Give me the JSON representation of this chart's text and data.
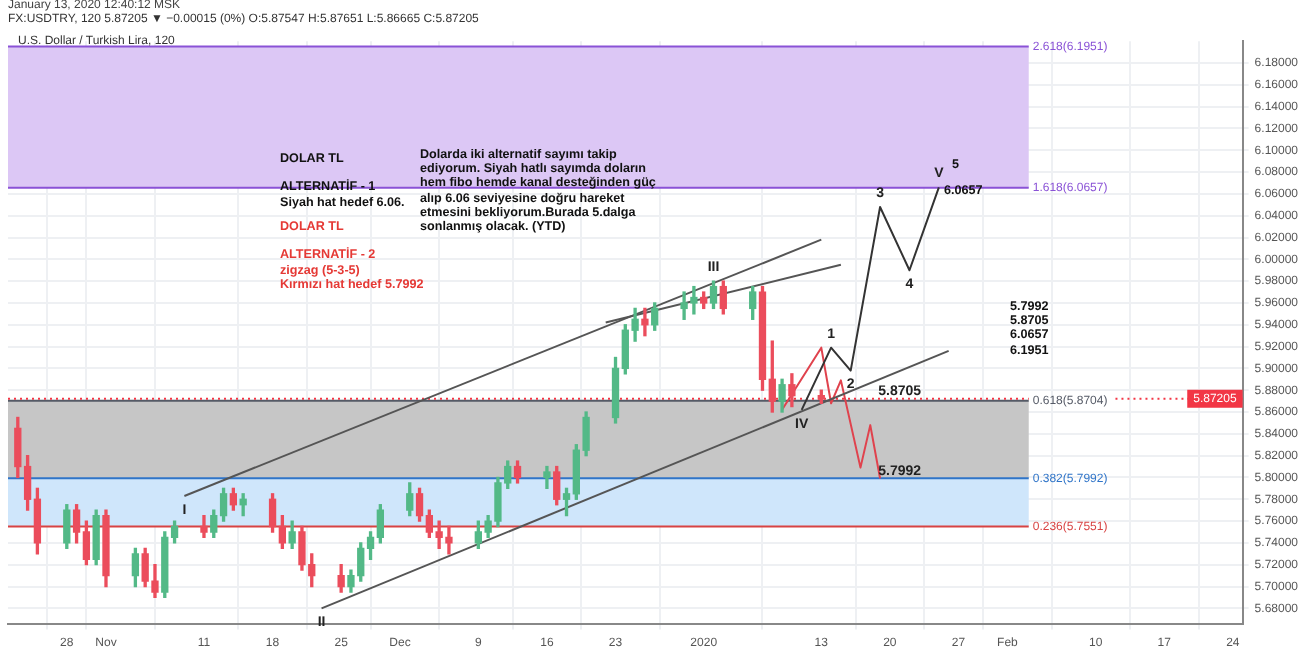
{
  "chart_data": {
    "type": "candlestick",
    "title": "U.S. Dollar / Turkish Lira, 120",
    "subtitle": "FX:USDTRY, 120 5.87205 ▼ −0.00015 (0%) O:5.87547 H:5.87651 L:5.86665 C:5.87205",
    "annotations": [
      "January 13, 2020 12:40:12 MSK",
      "DOLAR TL\n\nALTERNATİF - 1\nSiyah hat hedef 6.06.",
      "DOLAR TL\n\nALTERNATİF - 2\nzigzag (5-3-5)\nKırmızı hat  hedef 5.7992",
      "Dolarda iki alternatif sayımı takip ediyorum. Siyah hatlı sayımda doların hem fibo hemde kanal desteğinden güç alıp 6.06 seviyesine doğru hareket etmesini bekliyorum.Burada 5.dalga sonlanmış olacak. (YTD)",
      "5.7992\n5.8705\n6.0657\n6.1951",
      "5",
      "6.0657",
      {
        "text": "I",
        "x": "2019-11-09",
        "y": 5.783
      },
      {
        "text": "II",
        "x": "2019-11-23",
        "y": 5.68
      },
      {
        "text": "III",
        "x": "2020-01-02",
        "y": 5.98
      },
      {
        "text": "IV",
        "x": "2020-01-11",
        "y": 5.862
      },
      {
        "text": "V",
        "x": "2020-01-25",
        "y": 6.066
      },
      {
        "text": "1",
        "x": "2020-01-14",
        "y": 5.919
      },
      {
        "text": "2",
        "x": "2020-01-16",
        "y": 5.898
      },
      {
        "text": "3",
        "x": "2020-01-19",
        "y": 6.048
      },
      {
        "text": "4",
        "x": "2020-01-22",
        "y": 5.99
      },
      {
        "text": "5.8705",
        "x": "2020-01-21",
        "y": 5.866
      },
      {
        "text": "5.7992",
        "x": "2020-01-21",
        "y": 5.793
      }
    ],
    "x": [
      "2019-10-23",
      "2019-10-24",
      "2019-10-25",
      "2019-10-28",
      "2019-10-29",
      "2019-10-30",
      "2019-10-31",
      "2019-11-01",
      "2019-11-04",
      "2019-11-05",
      "2019-11-06",
      "2019-11-07",
      "2019-11-08",
      "2019-11-11",
      "2019-11-12",
      "2019-11-13",
      "2019-11-14",
      "2019-11-15",
      "2019-11-18",
      "2019-11-19",
      "2019-11-20",
      "2019-11-21",
      "2019-11-22",
      "2019-11-25",
      "2019-11-26",
      "2019-11-27",
      "2019-11-28",
      "2019-11-29",
      "2019-12-02",
      "2019-12-03",
      "2019-12-04",
      "2019-12-05",
      "2019-12-06",
      "2019-12-09",
      "2019-12-10",
      "2019-12-11",
      "2019-12-12",
      "2019-12-13",
      "2019-12-16",
      "2019-12-17",
      "2019-12-18",
      "2019-12-19",
      "2019-12-20",
      "2019-12-23",
      "2019-12-24",
      "2019-12-25",
      "2019-12-26",
      "2019-12-27",
      "2019-12-30",
      "2019-12-31",
      "2020-01-01",
      "2020-01-02",
      "2020-01-03",
      "2020-01-06",
      "2020-01-07",
      "2020-01-08",
      "2020-01-09",
      "2020-01-10",
      "2020-01-13"
    ],
    "ohlc": [
      [
        5.845,
        5.855,
        5.8,
        5.81
      ],
      [
        5.81,
        5.82,
        5.77,
        5.78
      ],
      [
        5.78,
        5.79,
        5.73,
        5.74
      ],
      [
        5.74,
        5.775,
        5.735,
        5.77
      ],
      [
        5.77,
        5.775,
        5.74,
        5.75
      ],
      [
        5.75,
        5.76,
        5.72,
        5.725
      ],
      [
        5.725,
        5.77,
        5.72,
        5.765
      ],
      [
        5.765,
        5.77,
        5.7,
        5.71
      ],
      [
        5.71,
        5.735,
        5.7,
        5.73
      ],
      [
        5.73,
        5.735,
        5.7,
        5.705
      ],
      [
        5.705,
        5.72,
        5.69,
        5.695
      ],
      [
        5.695,
        5.75,
        5.69,
        5.745
      ],
      [
        5.745,
        5.76,
        5.74,
        5.755
      ],
      [
        5.755,
        5.765,
        5.745,
        5.75
      ],
      [
        5.75,
        5.77,
        5.745,
        5.765
      ],
      [
        5.765,
        5.79,
        5.76,
        5.785
      ],
      [
        5.785,
        5.79,
        5.77,
        5.775
      ],
      [
        5.775,
        5.785,
        5.765,
        5.78
      ],
      [
        5.78,
        5.785,
        5.75,
        5.755
      ],
      [
        5.755,
        5.765,
        5.735,
        5.74
      ],
      [
        5.74,
        5.76,
        5.735,
        5.75
      ],
      [
        5.75,
        5.755,
        5.715,
        5.72
      ],
      [
        5.72,
        5.73,
        5.7,
        5.71
      ],
      [
        5.71,
        5.72,
        5.695,
        5.7
      ],
      [
        5.7,
        5.715,
        5.695,
        5.71
      ],
      [
        5.71,
        5.74,
        5.705,
        5.735
      ],
      [
        5.735,
        5.75,
        5.725,
        5.745
      ],
      [
        5.745,
        5.775,
        5.74,
        5.77
      ],
      [
        5.77,
        5.795,
        5.765,
        5.785
      ],
      [
        5.785,
        5.79,
        5.76,
        5.765
      ],
      [
        5.765,
        5.77,
        5.745,
        5.75
      ],
      [
        5.75,
        5.76,
        5.735,
        5.745
      ],
      [
        5.745,
        5.755,
        5.73,
        5.74
      ],
      [
        5.74,
        5.76,
        5.735,
        5.75
      ],
      [
        5.75,
        5.765,
        5.745,
        5.76
      ],
      [
        5.76,
        5.8,
        5.755,
        5.795
      ],
      [
        5.795,
        5.815,
        5.79,
        5.81
      ],
      [
        5.81,
        5.815,
        5.795,
        5.8
      ],
      [
        5.8,
        5.81,
        5.79,
        5.805
      ],
      [
        5.805,
        5.81,
        5.775,
        5.78
      ],
      [
        5.78,
        5.79,
        5.765,
        5.785
      ],
      [
        5.785,
        5.83,
        5.78,
        5.825
      ],
      [
        5.825,
        5.86,
        5.82,
        5.855
      ],
      [
        5.855,
        5.91,
        5.85,
        5.9
      ],
      [
        5.9,
        5.94,
        5.895,
        5.935
      ],
      [
        5.935,
        5.955,
        5.925,
        5.945
      ],
      [
        5.945,
        5.955,
        5.93,
        5.94
      ],
      [
        5.94,
        5.96,
        5.935,
        5.955
      ],
      [
        5.955,
        5.97,
        5.945,
        5.96
      ],
      [
        5.96,
        5.975,
        5.95,
        5.965
      ],
      [
        5.965,
        5.97,
        5.955,
        5.96
      ],
      [
        5.96,
        5.98,
        5.955,
        5.975
      ],
      [
        5.975,
        5.98,
        5.95,
        5.955
      ],
      [
        5.955,
        5.975,
        5.945,
        5.97
      ],
      [
        5.97,
        5.975,
        5.88,
        5.89
      ],
      [
        5.89,
        5.925,
        5.86,
        5.87
      ],
      [
        5.87,
        5.89,
        5.86,
        5.885
      ],
      [
        5.885,
        5.895,
        5.865,
        5.875
      ],
      [
        5.875,
        5.88,
        5.868,
        5.872
      ]
    ],
    "colors": [
      "#eb4d5c",
      "#eb4d5c",
      "#eb4d5c",
      "#53b987",
      "#eb4d5c",
      "#eb4d5c",
      "#53b987",
      "#eb4d5c",
      "#53b987",
      "#eb4d5c",
      "#eb4d5c",
      "#53b987",
      "#53b987",
      "#eb4d5c",
      "#53b987",
      "#53b987",
      "#eb4d5c",
      "#53b987",
      "#eb4d5c",
      "#eb4d5c",
      "#53b987",
      "#eb4d5c",
      "#eb4d5c",
      "#eb4d5c",
      "#53b987",
      "#53b987",
      "#53b987",
      "#53b987",
      "#53b987",
      "#eb4d5c",
      "#eb4d5c",
      "#eb4d5c",
      "#eb4d5c",
      "#53b987",
      "#53b987",
      "#53b987",
      "#53b987",
      "#eb4d5c",
      "#53b987",
      "#eb4d5c",
      "#53b987",
      "#53b987",
      "#53b987",
      "#53b987",
      "#53b987",
      "#53b987",
      "#eb4d5c",
      "#53b987",
      "#53b987",
      "#53b987",
      "#eb4d5c",
      "#53b987",
      "#eb4d5c",
      "#53b987",
      "#eb4d5c",
      "#eb4d5c",
      "#53b987",
      "#eb4d5c",
      "#eb4d5c"
    ],
    "series": [
      {
        "type": "line",
        "color": "#555555",
        "x": [
          "2019-11-09",
          "2020-01-13"
        ],
        "values": [
          5.783,
          6.018
        ]
      },
      {
        "type": "line",
        "color": "#555555",
        "x": [
          "2019-12-22",
          "2020-01-15"
        ],
        "values": [
          5.942,
          5.995
        ]
      },
      {
        "type": "line",
        "color": "#555555",
        "x": [
          "2019-11-23",
          "2020-01-26"
        ],
        "values": [
          5.68,
          5.916
        ]
      },
      {
        "type": "line",
        "color": "#333333",
        "x": [
          "2020-01-11",
          "2020-01-14",
          "2020-01-16",
          "2020-01-19",
          "2020-01-22",
          "2020-01-25"
        ],
        "values": [
          5.862,
          5.919,
          5.898,
          6.048,
          5.99,
          6.066
        ]
      },
      {
        "type": "line",
        "color": "#e0424d",
        "x": [
          "2020-01-09",
          "2020-01-13",
          "2020-01-14",
          "2020-01-15",
          "2020-01-17",
          "2020-01-18",
          "2020-01-19"
        ],
        "values": [
          5.862,
          5.919,
          5.868,
          5.889,
          5.809,
          5.848,
          5.799
        ]
      }
    ],
    "xlim": [
      "2019-10-22",
      "2020-02-25"
    ],
    "ylim": [
      5.666,
      6.2
    ],
    "xticks": [
      {
        "value": "2019-10-28",
        "label": "28"
      },
      {
        "value": "2019-11-01",
        "label": "Nov"
      },
      {
        "value": "2019-11-11",
        "label": "11"
      },
      {
        "value": "2019-11-18",
        "label": "18"
      },
      {
        "value": "2019-11-25",
        "label": "25"
      },
      {
        "value": "2019-12-01",
        "label": "Dec"
      },
      {
        "value": "2019-12-09",
        "label": "9"
      },
      {
        "value": "2019-12-16",
        "label": "16"
      },
      {
        "value": "2019-12-23",
        "label": "23"
      },
      {
        "value": "2020-01-01",
        "label": "2020"
      },
      {
        "value": "2020-01-13",
        "label": "13"
      },
      {
        "value": "2020-01-20",
        "label": "20"
      },
      {
        "value": "2020-01-27",
        "label": "27"
      },
      {
        "value": "2020-02-01",
        "label": "Feb"
      },
      {
        "value": "2020-02-10",
        "label": "10"
      },
      {
        "value": "2020-02-17",
        "label": "17"
      },
      {
        "value": "2020-02-24",
        "label": "24"
      }
    ],
    "yticks": [
      {
        "value": 5.68,
        "label": "5.68000"
      },
      {
        "value": 5.7,
        "label": "5.70000"
      },
      {
        "value": 5.72,
        "label": "5.72000"
      },
      {
        "value": 5.74,
        "label": "5.74000"
      },
      {
        "value": 5.76,
        "label": "5.76000"
      },
      {
        "value": 5.78,
        "label": "5.78000"
      },
      {
        "value": 5.8,
        "label": "5.80000"
      },
      {
        "value": 5.82,
        "label": "5.82000"
      },
      {
        "value": 5.84,
        "label": "5.84000"
      },
      {
        "value": 5.86,
        "label": "5.86000"
      },
      {
        "value": 5.88,
        "label": "5.88000"
      },
      {
        "value": 5.9,
        "label": "5.90000"
      },
      {
        "value": 5.92,
        "label": "5.92000"
      },
      {
        "value": 5.94,
        "label": "5.94000"
      },
      {
        "value": 5.96,
        "label": "5.96000"
      },
      {
        "value": 5.98,
        "label": "5.98000"
      },
      {
        "value": 6,
        "label": "6.00000"
      },
      {
        "value": 6.02,
        "label": "6.02000"
      },
      {
        "value": 6.04,
        "label": "6.04000"
      },
      {
        "value": 6.06,
        "label": "6.06000"
      },
      {
        "value": 6.08,
        "label": "6.08000"
      },
      {
        "value": 6.1,
        "label": "6.10000"
      },
      {
        "value": 6.12,
        "label": "6.12000"
      },
      {
        "value": 6.14,
        "label": "6.14000"
      },
      {
        "value": 6.16,
        "label": "6.16000"
      },
      {
        "value": 6.18,
        "label": "6.18000"
      }
    ],
    "grid": true,
    "marker": "none",
    "bands": [
      {
        "axis": "y",
        "from": 5.7992,
        "to": 5.8704,
        "color": "#c6c6c6"
      },
      {
        "axis": "y",
        "from": 5.7551,
        "to": 5.7992,
        "color": "#cfe6fb"
      },
      {
        "axis": "y",
        "from": 6.0657,
        "to": 6.1951,
        "color": "#dcc7f5"
      }
    ],
    "ref_lines": [
      {
        "axis": "y",
        "value": 5.8704,
        "label": "0.618(5.8704)",
        "color": "#555a66"
      },
      {
        "axis": "y",
        "value": 5.7992,
        "label": "0.382(5.7992)",
        "color": "#2f74c8"
      },
      {
        "axis": "y",
        "value": 5.7551,
        "label": "0.236(5.7551)",
        "color": "#d84343"
      },
      {
        "axis": "y",
        "value": 6.0657,
        "label": "1.618(6.0657)",
        "color": "#8a52d6"
      },
      {
        "axis": "y",
        "value": 6.1951,
        "label": "2.618(6.1951)",
        "color": "#8a52d6"
      },
      {
        "axis": "y",
        "value": 5.87205,
        "label": "5.87205",
        "color": "#f23645",
        "line_style": "dotted"
      }
    ]
  }
}
